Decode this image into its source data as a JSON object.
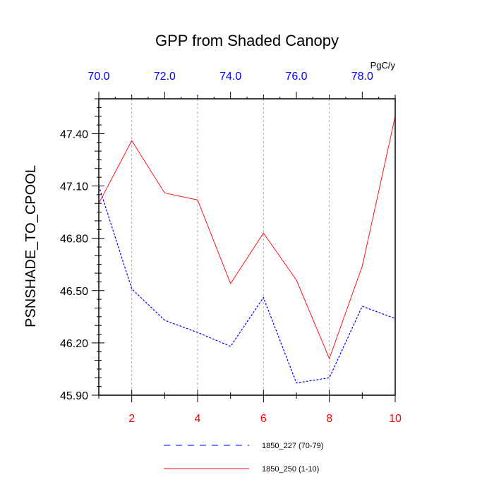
{
  "chart_data": {
    "type": "line",
    "title": "GPP from Shaded Canopy",
    "ylabel": "PSNSHADE_TO_CPOOL",
    "top_axis_unit": "PgC/y",
    "ylim": [
      45.9,
      47.6
    ],
    "xlim_bottom": [
      1,
      10
    ],
    "xlim_top": [
      70,
      79
    ],
    "y_ticks": [
      "45.90",
      "46.20",
      "46.50",
      "46.80",
      "47.10",
      "47.40"
    ],
    "x_ticks_bottom": [
      "2",
      "4",
      "6",
      "8",
      "10"
    ],
    "x_ticks_top": [
      "70.0",
      "72.0",
      "74.0",
      "76.0",
      "78.0"
    ],
    "grid": "vertical-dotted",
    "colors": {
      "top_axis": "#0000ff",
      "bottom_axis": "#ff0000"
    },
    "series": [
      {
        "name": "1850_227 (70-79)",
        "color": "#0000ff",
        "dash": "dashed",
        "x": [
          1,
          2,
          3,
          4,
          5,
          6,
          7,
          8,
          9,
          10
        ],
        "values": [
          47.1,
          46.51,
          46.33,
          46.26,
          46.18,
          46.46,
          45.97,
          46.0,
          46.41,
          46.34
        ]
      },
      {
        "name": "1850_250 (1-10)",
        "color": "#ff0000",
        "dash": "solid",
        "x": [
          1,
          2,
          3,
          4,
          5,
          6,
          7,
          8,
          9,
          10
        ],
        "values": [
          47.0,
          47.36,
          47.06,
          47.02,
          46.54,
          46.83,
          46.56,
          46.11,
          46.64,
          47.5
        ]
      }
    ]
  }
}
